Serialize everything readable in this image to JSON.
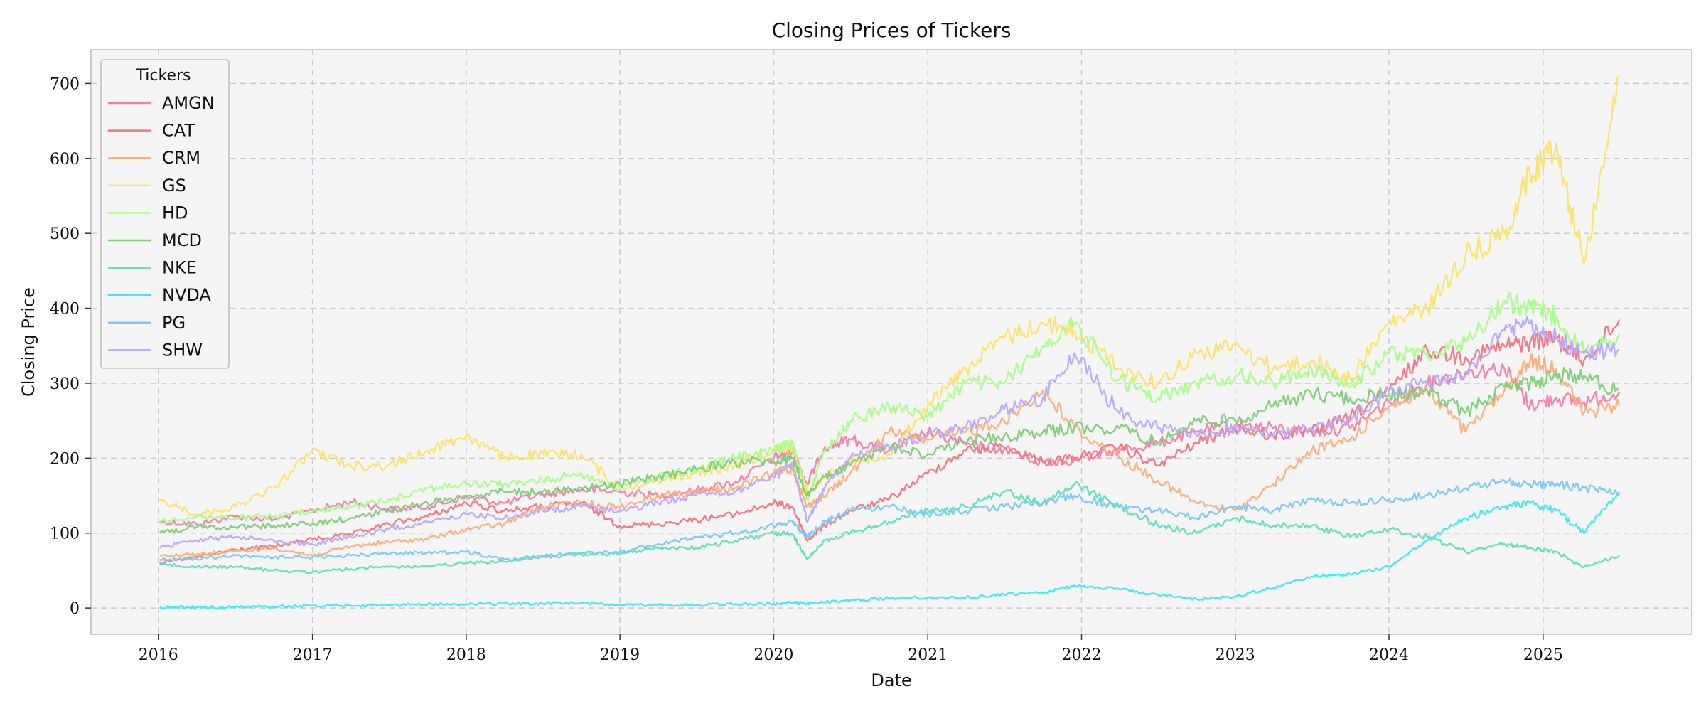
{
  "chart_data": {
    "type": "line",
    "title": "Closing Prices of Tickers",
    "xlabel": "Date",
    "ylabel": "Closing Price",
    "xlim": [
      "2015-07-25",
      "2025-12-20"
    ],
    "ylim": [
      -35,
      745
    ],
    "x_ticks": [
      "2016",
      "2017",
      "2018",
      "2019",
      "2020",
      "2021",
      "2022",
      "2023",
      "2024",
      "2025"
    ],
    "y_ticks": [
      0,
      100,
      200,
      300,
      400,
      500,
      600,
      700
    ],
    "grid": true,
    "legend": {
      "title": "Tickers",
      "placement": "top-left"
    },
    "x": [
      "2016-01-04",
      "2016-04-01",
      "2016-07-01",
      "2016-10-01",
      "2017-01-01",
      "2017-04-01",
      "2017-07-01",
      "2017-10-01",
      "2018-01-01",
      "2018-04-01",
      "2018-07-01",
      "2018-10-01",
      "2019-01-01",
      "2019-04-01",
      "2019-07-01",
      "2019-10-01",
      "2020-01-01",
      "2020-02-15",
      "2020-03-20",
      "2020-05-01",
      "2020-07-01",
      "2020-10-01",
      "2021-01-01",
      "2021-04-01",
      "2021-07-01",
      "2021-10-01",
      "2021-12-15",
      "2022-04-01",
      "2022-07-01",
      "2022-10-01",
      "2023-01-01",
      "2023-04-01",
      "2023-07-01",
      "2023-10-01",
      "2024-01-01",
      "2024-04-01",
      "2024-07-01",
      "2024-10-01",
      "2024-12-01",
      "2025-02-01",
      "2025-04-08",
      "2025-07-01"
    ],
    "series": [
      {
        "name": "AMGN",
        "color": "#f37fa7",
        "values": [
          115,
          112,
          122,
          118,
          130,
          142,
          132,
          135,
          148,
          140,
          152,
          158,
          155,
          150,
          157,
          168,
          200,
          210,
          165,
          215,
          225,
          210,
          235,
          218,
          212,
          195,
          198,
          210,
          220,
          235,
          245,
          240,
          235,
          240,
          275,
          300,
          315,
          320,
          270,
          280,
          275,
          288
        ]
      },
      {
        "name": "CAT",
        "color": "#f8737e",
        "values": [
          60,
          68,
          78,
          82,
          92,
          98,
          112,
          122,
          140,
          130,
          135,
          140,
          110,
          112,
          118,
          125,
          140,
          135,
          90,
          110,
          130,
          145,
          180,
          210,
          215,
          195,
          200,
          215,
          190,
          220,
          240,
          230,
          235,
          255,
          290,
          345,
          335,
          350,
          355,
          360,
          330,
          385
        ]
      },
      {
        "name": "CRM",
        "color": "#ffae7a",
        "values": [
          70,
          72,
          75,
          80,
          70,
          82,
          88,
          92,
          105,
          112,
          135,
          140,
          135,
          150,
          155,
          160,
          180,
          185,
          135,
          150,
          180,
          235,
          225,
          235,
          250,
          290,
          240,
          200,
          170,
          140,
          130,
          165,
          210,
          225,
          270,
          290,
          235,
          290,
          330,
          320,
          260,
          270
        ]
      },
      {
        "name": "GS",
        "color": "#fde26d",
        "values": [
          145,
          125,
          135,
          160,
          210,
          190,
          190,
          210,
          230,
          200,
          205,
          205,
          160,
          170,
          180,
          190,
          210,
          215,
          155,
          175,
          195,
          205,
          270,
          320,
          360,
          380,
          370,
          320,
          300,
          340,
          350,
          320,
          330,
          305,
          380,
          400,
          470,
          500,
          580,
          620,
          460,
          710
        ]
      },
      {
        "name": "HD",
        "color": "#a6ff87",
        "values": [
          115,
          122,
          120,
          122,
          128,
          135,
          145,
          160,
          165,
          165,
          170,
          180,
          160,
          175,
          185,
          200,
          210,
          220,
          145,
          210,
          250,
          270,
          255,
          300,
          300,
          350,
          380,
          305,
          280,
          300,
          310,
          300,
          320,
          295,
          340,
          340,
          355,
          410,
          400,
          390,
          340,
          365
        ]
      },
      {
        "name": "MCD",
        "color": "#7ecf78",
        "values": [
          100,
          108,
          108,
          110,
          112,
          120,
          130,
          140,
          150,
          155,
          155,
          160,
          165,
          175,
          185,
          195,
          195,
          200,
          150,
          175,
          190,
          215,
          205,
          220,
          230,
          235,
          240,
          240,
          220,
          250,
          250,
          270,
          285,
          280,
          285,
          290,
          260,
          295,
          300,
          310,
          310,
          290
        ]
      },
      {
        "name": "NKE",
        "color": "#5fe0b5",
        "values": [
          58,
          55,
          55,
          50,
          48,
          52,
          55,
          55,
          60,
          62,
          70,
          73,
          72,
          80,
          80,
          90,
          100,
          98,
          65,
          90,
          100,
          115,
          130,
          135,
          155,
          140,
          165,
          135,
          110,
          100,
          120,
          110,
          110,
          95,
          105,
          95,
          75,
          85,
          80,
          75,
          55,
          70
        ]
      },
      {
        "name": "NVDA",
        "color": "#3fe8f4",
        "values": [
          1,
          1,
          1,
          2,
          3,
          3,
          4,
          5,
          5,
          6,
          6,
          7,
          4,
          4,
          4,
          5,
          6,
          7,
          6,
          8,
          10,
          13,
          14,
          14,
          18,
          20,
          30,
          25,
          18,
          12,
          15,
          27,
          42,
          45,
          55,
          90,
          120,
          135,
          140,
          130,
          100,
          155
        ]
      },
      {
        "name": "PG",
        "color": "#7ec8f8",
        "values": [
          64,
          66,
          70,
          68,
          68,
          70,
          72,
          74,
          75,
          65,
          68,
          72,
          75,
          85,
          95,
          100,
          110,
          115,
          95,
          115,
          130,
          135,
          125,
          130,
          135,
          140,
          150,
          135,
          130,
          120,
          135,
          130,
          145,
          140,
          145,
          150,
          160,
          170,
          165,
          165,
          160,
          155
        ]
      },
      {
        "name": "SHW",
        "color": "#b8aaff",
        "values": [
          80,
          90,
          95,
          90,
          85,
          95,
          105,
          115,
          125,
          120,
          130,
          135,
          130,
          140,
          150,
          155,
          175,
          190,
          115,
          160,
          200,
          215,
          230,
          240,
          265,
          280,
          340,
          260,
          240,
          230,
          240,
          230,
          240,
          250,
          290,
          300,
          310,
          370,
          380,
          360,
          340,
          345
        ]
      }
    ]
  }
}
